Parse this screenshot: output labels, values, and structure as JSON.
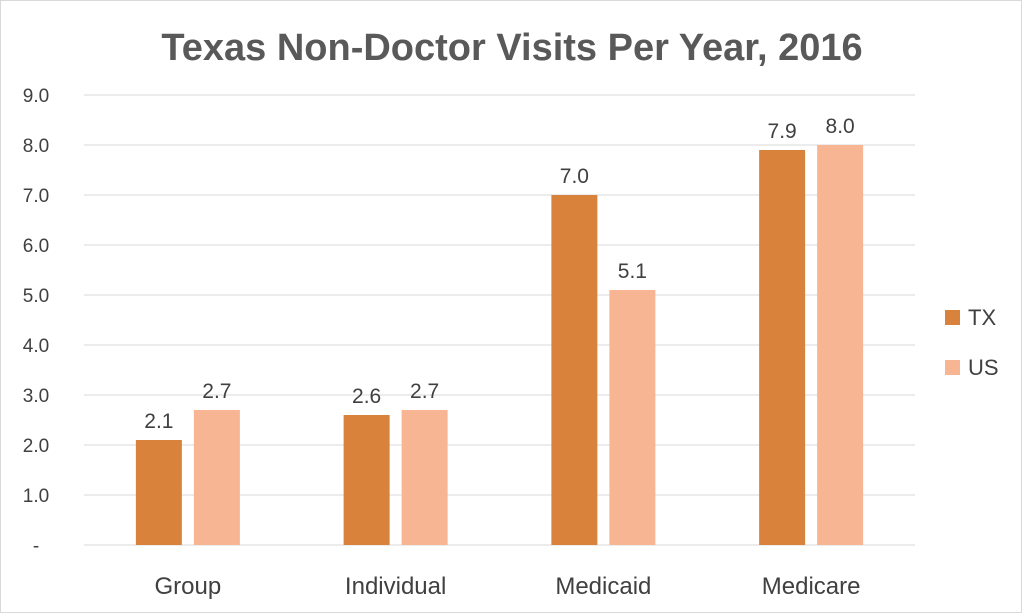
{
  "chart_data": {
    "type": "bar",
    "title": "Texas Non-Doctor Visits Per Year, 2016",
    "categories": [
      "Group",
      "Individual",
      "Medicaid",
      "Medicare"
    ],
    "series": [
      {
        "name": "TX",
        "values": [
          2.1,
          2.6,
          7.0,
          7.9
        ],
        "labels": [
          "2.1",
          "2.6",
          "7.0",
          "7.9"
        ],
        "color": "#d9823b"
      },
      {
        "name": "US",
        "values": [
          2.7,
          2.7,
          5.1,
          8.0
        ],
        "labels": [
          "2.7",
          "2.7",
          "5.1",
          "8.0"
        ],
        "color": "#f8b594"
      }
    ],
    "ylim": [
      0,
      9
    ],
    "yticks": [
      "-",
      "1.0",
      "2.0",
      "3.0",
      "4.0",
      "5.0",
      "6.0",
      "7.0",
      "8.0",
      "9.0"
    ],
    "grid": true,
    "legend_position": "right"
  }
}
